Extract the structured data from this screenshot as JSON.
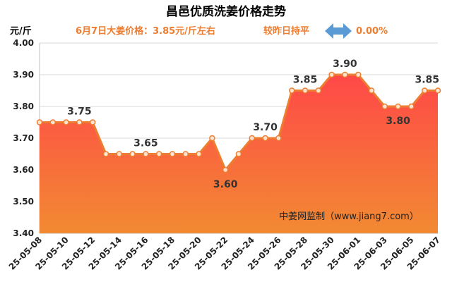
{
  "header": {
    "title": "昌邑优质洗姜价格走势",
    "price_note": "6月7日大姜价格：3.85元/斤左右",
    "compare_label": "较昨日持平",
    "change_value": "0.00%"
  },
  "watermark": "中姜网监制（www.jiang7.com）",
  "icons": {
    "trend": "double-arrow-icon"
  },
  "colors": {
    "line": "#ed7d31",
    "marker_fill": "#fde4d0",
    "area_top": "#ff4848",
    "area_bottom": "#f28a32",
    "arrow": "#5b9bd5",
    "grid": "#d9d9d9",
    "accent_text": "#ed7d31"
  },
  "chart_data": {
    "type": "area",
    "ylabel": "元/斤",
    "ylim": [
      3.4,
      4.0
    ],
    "yticks": [
      "3.40",
      "3.50",
      "3.60",
      "3.70",
      "3.80",
      "3.90",
      "4.00"
    ],
    "grid": "horizontal",
    "x": [
      "25-05-08",
      "25-05-09",
      "25-05-10",
      "25-05-11",
      "25-05-12",
      "25-05-13",
      "25-05-14",
      "25-05-15",
      "25-05-16",
      "25-05-17",
      "25-05-18",
      "25-05-19",
      "25-05-20",
      "25-05-21",
      "25-05-22",
      "25-05-23",
      "25-05-24",
      "25-05-25",
      "25-05-26",
      "25-05-27",
      "25-05-28",
      "25-05-29",
      "25-05-30",
      "25-05-31",
      "25-06-01",
      "25-06-02",
      "25-06-03",
      "25-06-04",
      "25-06-05",
      "25-06-06",
      "25-06-07"
    ],
    "xtick_labels": [
      "25-05-08",
      "25-05-10",
      "25-05-12",
      "25-05-14",
      "25-05-16",
      "25-05-18",
      "25-05-20",
      "25-05-22",
      "25-05-24",
      "25-05-26",
      "25-05-28",
      "25-05-30",
      "25-06-01",
      "25-06-03",
      "25-06-05",
      "25-06-07"
    ],
    "values": [
      3.75,
      3.75,
      3.75,
      3.75,
      3.75,
      3.65,
      3.65,
      3.65,
      3.65,
      3.65,
      3.65,
      3.65,
      3.65,
      3.7,
      3.6,
      3.65,
      3.7,
      3.7,
      3.7,
      3.85,
      3.85,
      3.85,
      3.9,
      3.9,
      3.9,
      3.85,
      3.8,
      3.8,
      3.8,
      3.85,
      3.85
    ],
    "data_labels": [
      {
        "index": 3,
        "text": "3.75",
        "pos": "above"
      },
      {
        "index": 8,
        "text": "3.65",
        "pos": "above"
      },
      {
        "index": 14,
        "text": "3.60",
        "pos": "below"
      },
      {
        "index": 17,
        "text": "3.70",
        "pos": "above"
      },
      {
        "index": 20,
        "text": "3.85",
        "pos": "above"
      },
      {
        "index": 23,
        "text": "3.90",
        "pos": "above"
      },
      {
        "index": 27,
        "text": "3.80",
        "pos": "below"
      },
      {
        "index": 30,
        "text": "3.85",
        "pos": "above"
      }
    ]
  }
}
